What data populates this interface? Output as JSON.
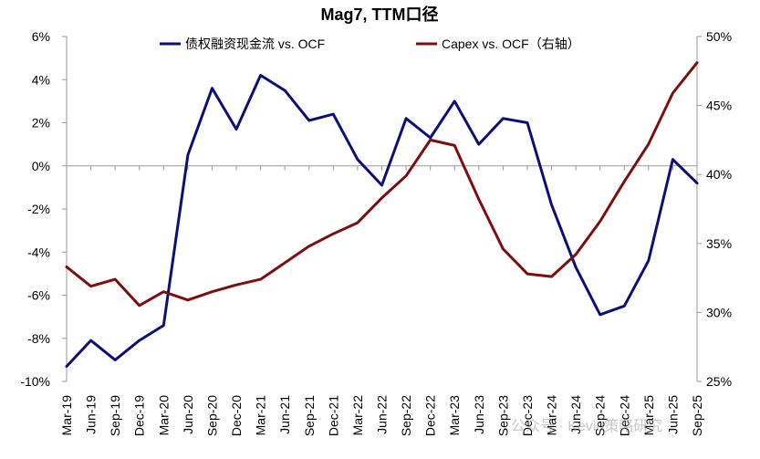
{
  "chart_data": {
    "type": "line",
    "title": "Mag7, TTM口径",
    "categories": [
      "Mar-19",
      "Jun-19",
      "Sep-19",
      "Dec-19",
      "Mar-20",
      "Jun-20",
      "Sep-20",
      "Dec-20",
      "Mar-21",
      "Jun-21",
      "Sep-21",
      "Dec-21",
      "Mar-22",
      "Jun-22",
      "Sep-22",
      "Dec-22",
      "Mar-23",
      "Jun-23",
      "Sep-23",
      "Dec-23",
      "Mar-24",
      "Jun-24",
      "Sep-24",
      "Dec-24",
      "Mar-25",
      "Jun-25",
      "Sep-25"
    ],
    "y_left": {
      "min": -10,
      "max": 6,
      "step": 2,
      "suffix": "%"
    },
    "y_right": {
      "min": 25,
      "max": 50,
      "step": 5,
      "suffix": "%"
    },
    "series": [
      {
        "name": "债权融资现金流 vs. OCF",
        "axis": "left",
        "color": "#0b0f7a",
        "values": [
          -9.3,
          -8.1,
          -9.0,
          -8.1,
          -7.4,
          0.5,
          3.6,
          1.7,
          4.2,
          3.5,
          2.1,
          2.4,
          0.3,
          -0.9,
          2.2,
          1.3,
          3.0,
          1.0,
          2.2,
          2.0,
          -1.8,
          -4.7,
          -6.9,
          -6.5,
          -4.4,
          0.3,
          -0.8
        ]
      },
      {
        "name": "Capex vs. OCF（右轴）",
        "axis": "right",
        "color": "#7b0f0f",
        "values": [
          33.3,
          31.9,
          32.4,
          30.5,
          31.5,
          30.9,
          31.5,
          32.0,
          32.4,
          33.6,
          34.8,
          35.7,
          36.5,
          38.3,
          39.9,
          42.5,
          42.1,
          38.2,
          34.6,
          32.8,
          32.6,
          34.2,
          36.6,
          39.5,
          42.2,
          45.9,
          48.1
        ]
      }
    ],
    "grid": false,
    "legend_position": "top"
  },
  "watermark": "公众号 · Kevin策略研究"
}
